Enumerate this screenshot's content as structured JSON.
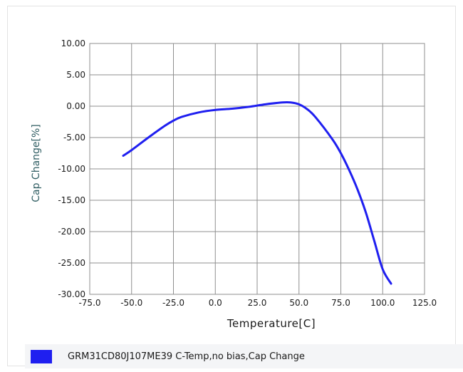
{
  "chart_data": {
    "type": "line",
    "title": "",
    "xlabel": "Temperature[C]",
    "ylabel": "Cap Change[%]",
    "xlim": [
      -75,
      125
    ],
    "ylim": [
      -30,
      10
    ],
    "x_ticks": [
      -75,
      -50,
      -25,
      0,
      25,
      50,
      75,
      100,
      125
    ],
    "y_ticks": [
      10,
      5,
      0,
      -5,
      -10,
      -15,
      -20,
      -25,
      -30
    ],
    "x_tick_labels": [
      "-75.0",
      "-50.0",
      "-25.0",
      "0.0",
      "25.0",
      "50.0",
      "75.0",
      "100.0",
      "125.0"
    ],
    "y_tick_labels": [
      "10.00",
      "5.00",
      "0.00",
      "-5.00",
      "-10.00",
      "-15.00",
      "-20.00",
      "-25.00",
      "-30.00"
    ],
    "grid": true,
    "legend_position": "bottom",
    "series": [
      {
        "name": "GRM31CD80J107ME39 C-Temp,no bias,Cap Change",
        "color": "#1f1ff0",
        "x": [
          -55,
          -50,
          -40,
          -30,
          -25,
          -20,
          -10,
          0,
          10,
          20,
          30,
          40,
          45,
          50,
          55,
          60,
          70,
          75,
          80,
          85,
          90,
          95,
          100,
          105
        ],
        "y": [
          -7.9,
          -7.0,
          -5.0,
          -3.1,
          -2.3,
          -1.7,
          -1.0,
          -0.6,
          -0.4,
          -0.1,
          0.3,
          0.6,
          0.6,
          0.3,
          -0.5,
          -1.8,
          -5.3,
          -7.5,
          -10.2,
          -13.3,
          -17.0,
          -21.5,
          -26.0,
          -28.3
        ]
      }
    ]
  }
}
